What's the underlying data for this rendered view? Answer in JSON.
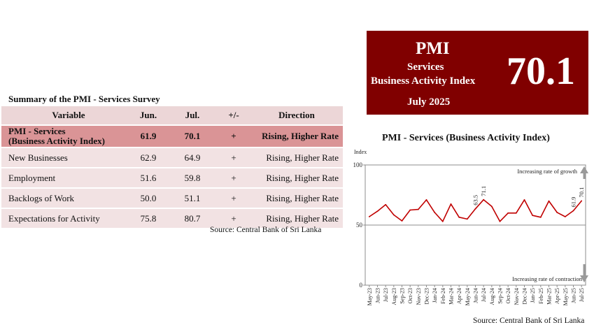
{
  "table_section": {
    "title": "Summary of the PMI - Services Survey",
    "headers": [
      "Variable",
      "Jun.",
      "Jul.",
      "+/-",
      "Direction"
    ],
    "rows": [
      {
        "variable": "PMI - Services",
        "variable_line2": "(Business Activity Index)",
        "jun": "61.9",
        "jul": "70.1",
        "change": "+",
        "direction": "Rising, Higher Rate"
      },
      {
        "variable": "New Businesses",
        "jun": "62.9",
        "jul": "64.9",
        "change": "+",
        "direction": "Rising, Higher Rate"
      },
      {
        "variable": "Employment",
        "jun": "51.6",
        "jul": "59.8",
        "change": "+",
        "direction": "Rising, Higher Rate"
      },
      {
        "variable": "Backlogs of Work",
        "jun": "50.0",
        "jul": "51.1",
        "change": "+",
        "direction": "Rising, Higher Rate"
      },
      {
        "variable": "Expectations for Activity",
        "jun": "75.8",
        "jul": "80.7",
        "change": "+",
        "direction": "Rising, Higher Rate"
      }
    ],
    "source": "Source: Central Bank of Sri Lanka"
  },
  "highlight_box": {
    "heading": "PMI",
    "line1": "Services",
    "line2": "Business Activity Index",
    "month": "July 2025",
    "value": "70.1",
    "background": "#800000"
  },
  "chart_section": {
    "source": "Source: Central Bank of Sri Lanka"
  },
  "chart_data": {
    "type": "line",
    "title": "PMI - Services (Business Activity Index)",
    "ylabel": "Index",
    "ylim": [
      0,
      100
    ],
    "yticks": [
      0,
      50,
      100
    ],
    "categories": [
      "May-23",
      "Jun-23",
      "Jul-23",
      "Aug-23",
      "Sep-23",
      "Oct-23",
      "Nov-23",
      "Dec-23",
      "Jan-24",
      "Feb-24",
      "Mar-24",
      "Apr-24",
      "May-24",
      "Jun-24",
      "Jul-24",
      "Aug-24",
      "Sep-24",
      "Oct-24",
      "Nov-24",
      "Dec-24",
      "Jan-25",
      "Feb-25",
      "Mar-25",
      "Apr-25",
      "May-25",
      "Jun-25",
      "Jul-25"
    ],
    "series": [
      {
        "values": [
          57.0,
          61.5,
          67.0,
          58.5,
          53.5,
          62.5,
          63.0,
          71.0,
          60.5,
          53.0,
          67.5,
          56.5,
          55.0,
          63.5,
          71.1,
          65.5,
          53.0,
          60.0,
          60.0,
          71.0,
          58.0,
          56.5,
          70.0,
          60.5,
          57.0,
          61.9,
          70.1
        ],
        "color": "#c00000"
      }
    ],
    "data_labels": [
      {
        "index": 13,
        "text": "63.5"
      },
      {
        "index": 14,
        "text": "71.1"
      },
      {
        "index": 25,
        "text": "61.9"
      },
      {
        "index": 26,
        "text": "70.1"
      }
    ],
    "annotations": {
      "top": "Increasing rate of growth",
      "bottom": "Increasing rate of contraction"
    },
    "reference_line": 50,
    "grid": false
  }
}
